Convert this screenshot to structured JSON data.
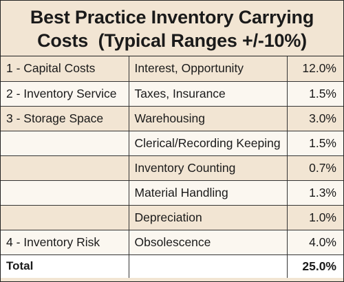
{
  "title": {
    "line1": "Best Practice Inventory Carrying",
    "line2": "Costs  (Typical Ranges +/-10%)"
  },
  "rows": [
    {
      "category": "1 - Capital Costs",
      "item": "Interest, Opportunity",
      "value": "12.0%"
    },
    {
      "category": "2 - Inventory Service",
      "item": "Taxes, Insurance",
      "value": "1.5%"
    },
    {
      "category": "3 - Storage Space",
      "item": "Warehousing",
      "value": "3.0%"
    },
    {
      "category": "",
      "item": "Clerical/Recording Keeping",
      "value": "1.5%"
    },
    {
      "category": "",
      "item": "Inventory Counting",
      "value": "0.7%"
    },
    {
      "category": "",
      "item": "Material Handling",
      "value": "1.3%"
    },
    {
      "category": "",
      "item": "Depreciation",
      "value": "1.0%"
    },
    {
      "category": "4 - Inventory Risk",
      "item": "Obsolescence",
      "value": "4.0%"
    }
  ],
  "total": {
    "label": "Total",
    "item": "",
    "value": "25.0%"
  },
  "colors": {
    "band_dark": "#f2e5d3",
    "band_light": "#fbf7f0",
    "border": "#333333"
  }
}
